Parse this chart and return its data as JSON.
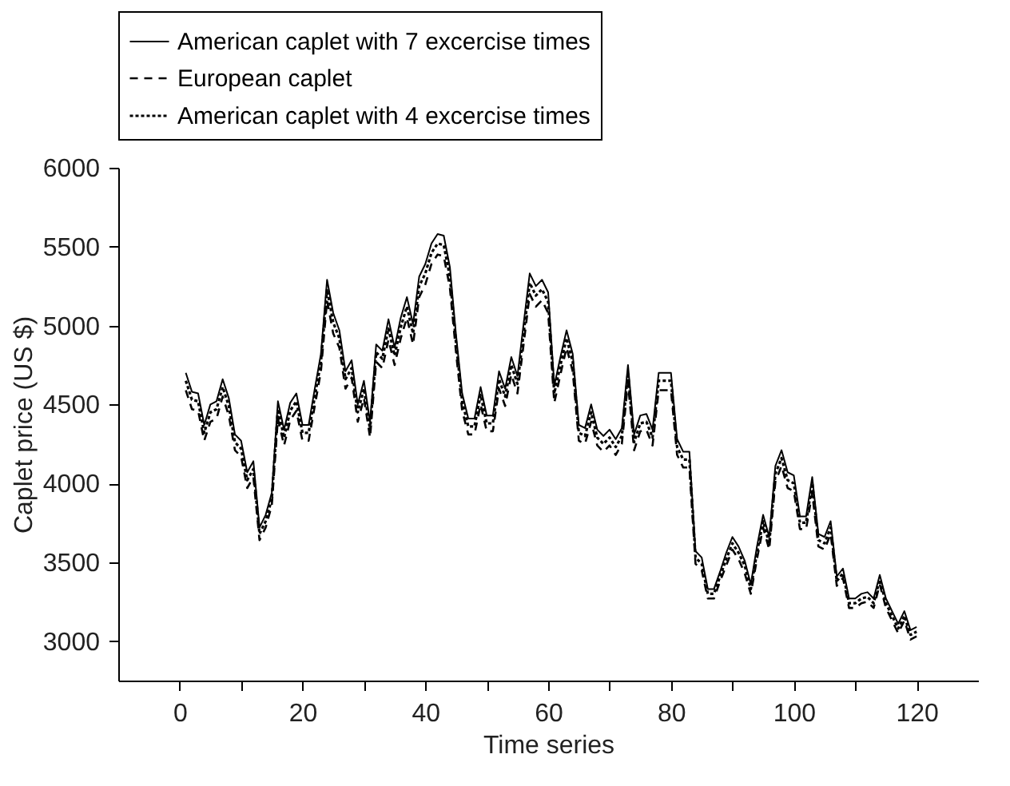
{
  "chart_data": {
    "type": "line",
    "xlabel": "Time series",
    "ylabel": "Caplet price (US $)",
    "x": [
      1,
      2,
      3,
      4,
      5,
      6,
      7,
      8,
      9,
      10,
      11,
      12,
      13,
      14,
      15,
      16,
      17,
      18,
      19,
      20,
      21,
      22,
      23,
      24,
      25,
      26,
      27,
      28,
      29,
      30,
      31,
      32,
      33,
      34,
      35,
      36,
      37,
      38,
      39,
      40,
      41,
      42,
      43,
      44,
      45,
      46,
      47,
      48,
      49,
      50,
      51,
      52,
      53,
      54,
      55,
      56,
      57,
      58,
      59,
      60,
      61,
      62,
      63,
      64,
      65,
      66,
      67,
      68,
      69,
      70,
      71,
      72,
      73,
      74,
      75,
      76,
      77,
      78,
      79,
      80,
      81,
      82,
      83,
      84,
      85,
      86,
      87,
      88,
      89,
      90,
      91,
      92,
      93,
      94,
      95,
      96,
      97,
      98,
      99,
      100,
      101,
      102,
      103,
      104,
      105,
      106,
      107,
      108,
      109,
      110,
      111,
      112,
      113,
      114,
      115,
      116,
      117,
      118,
      119,
      120
    ],
    "series": [
      {
        "name": "American caplet with 7 excercise times",
        "color": "#000000",
        "line_style": "solid",
        "values": [
          4700,
          4580,
          4570,
          4370,
          4500,
          4520,
          4660,
          4540,
          4310,
          4270,
          4070,
          4140,
          3720,
          3800,
          3940,
          4520,
          4340,
          4510,
          4570,
          4370,
          4370,
          4600,
          4820,
          5290,
          5080,
          4970,
          4710,
          4780,
          4500,
          4650,
          4390,
          4880,
          4840,
          5040,
          4860,
          5050,
          5180,
          5010,
          5310,
          5390,
          5520,
          5580,
          5570,
          5370,
          4940,
          4570,
          4410,
          4410,
          4610,
          4430,
          4430,
          4710,
          4600,
          4800,
          4680,
          5010,
          5330,
          5250,
          5290,
          5210,
          4620,
          4800,
          4970,
          4820,
          4370,
          4350,
          4500,
          4340,
          4300,
          4340,
          4280,
          4350,
          4750,
          4310,
          4430,
          4440,
          4340,
          4700,
          4700,
          4700,
          4280,
          4200,
          4200,
          3570,
          3530,
          3330,
          3330,
          3440,
          3560,
          3660,
          3600,
          3510,
          3360,
          3600,
          3800,
          3660,
          4110,
          4210,
          4070,
          4050,
          3790,
          3790,
          4040,
          3680,
          3660,
          3760,
          3410,
          3460,
          3270,
          3270,
          3300,
          3310,
          3270,
          3420,
          3270,
          3190,
          3110,
          3190,
          3070,
          3090
        ]
      },
      {
        "name": "European caplet",
        "color": "#000000",
        "line_style": "dashed",
        "values": [
          4590,
          4470,
          4460,
          4270,
          4390,
          4410,
          4550,
          4430,
          4210,
          4170,
          3970,
          4040,
          3640,
          3720,
          3860,
          4410,
          4240,
          4400,
          4460,
          4270,
          4270,
          4490,
          4710,
          5160,
          4950,
          4860,
          4600,
          4670,
          4390,
          4540,
          4290,
          4770,
          4730,
          4910,
          4750,
          4920,
          5050,
          4880,
          5180,
          5260,
          5390,
          5450,
          5440,
          5240,
          4830,
          4460,
          4310,
          4310,
          4500,
          4330,
          4330,
          4600,
          4490,
          4690,
          4570,
          4880,
          5200,
          5120,
          5160,
          5080,
          4510,
          4690,
          4860,
          4710,
          4270,
          4250,
          4390,
          4240,
          4200,
          4240,
          4180,
          4250,
          4640,
          4210,
          4330,
          4340,
          4240,
          4590,
          4590,
          4590,
          4180,
          4100,
          4100,
          3490,
          3450,
          3270,
          3270,
          3380,
          3480,
          3580,
          3520,
          3430,
          3300,
          3520,
          3720,
          3580,
          4010,
          4110,
          3970,
          3950,
          3710,
          3710,
          3940,
          3600,
          3580,
          3680,
          3350,
          3400,
          3210,
          3210,
          3240,
          3250,
          3210,
          3360,
          3210,
          3130,
          3050,
          3130,
          3010,
          3030
        ]
      },
      {
        "name": "American caplet with 4 excercise times",
        "color": "#000000",
        "line_style": "dotted",
        "values": [
          4650,
          4530,
          4520,
          4320,
          4450,
          4470,
          4610,
          4490,
          4260,
          4220,
          4020,
          4090,
          3680,
          3760,
          3900,
          4470,
          4290,
          4460,
          4520,
          4320,
          4320,
          4550,
          4770,
          5230,
          5020,
          4920,
          4660,
          4730,
          4450,
          4600,
          4340,
          4830,
          4790,
          4980,
          4810,
          4990,
          5120,
          4950,
          5250,
          5330,
          5460,
          5520,
          5510,
          5310,
          4890,
          4520,
          4360,
          4360,
          4560,
          4380,
          4380,
          4660,
          4550,
          4750,
          4630,
          4950,
          5270,
          5190,
          5230,
          5150,
          4570,
          4750,
          4920,
          4770,
          4320,
          4300,
          4450,
          4290,
          4250,
          4290,
          4230,
          4300,
          4700,
          4260,
          4380,
          4390,
          4290,
          4650,
          4650,
          4650,
          4230,
          4150,
          4150,
          3530,
          3490,
          3300,
          3300,
          3410,
          3520,
          3620,
          3560,
          3480,
          3330,
          3560,
          3760,
          3620,
          4060,
          4160,
          4020,
          4000,
          3750,
          3750,
          4000,
          3640,
          3620,
          3720,
          3380,
          3430,
          3240,
          3240,
          3270,
          3280,
          3240,
          3390,
          3240,
          3160,
          3080,
          3160,
          3040,
          3060
        ]
      }
    ],
    "xlim": [
      -10,
      130
    ],
    "ylim": [
      2750,
      6000
    ],
    "xticks": [
      0,
      {
        "value": 10,
        "label": null
      },
      20,
      {
        "value": 30,
        "label": null
      },
      40,
      {
        "value": 50,
        "label": null
      },
      60,
      {
        "value": 70,
        "label": null
      },
      80,
      {
        "value": 90,
        "label": null
      },
      100,
      {
        "value": 110,
        "label": null
      },
      120
    ],
    "yticks": [
      3000,
      3500,
      4000,
      4500,
      5000,
      5500,
      6000
    ],
    "grid": false,
    "legend": "top",
    "marker": "none"
  }
}
